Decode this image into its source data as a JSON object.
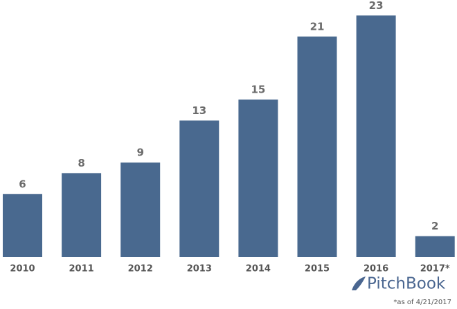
{
  "chart_data": {
    "type": "bar",
    "categories": [
      "2010",
      "2011",
      "2012",
      "2013",
      "2014",
      "2015",
      "2016",
      "2017*"
    ],
    "values": [
      6,
      8,
      9,
      13,
      15,
      21,
      23,
      2
    ],
    "color": "#49698f",
    "footnote": "*as of 4/21/2017",
    "logo": "PitchBook"
  }
}
